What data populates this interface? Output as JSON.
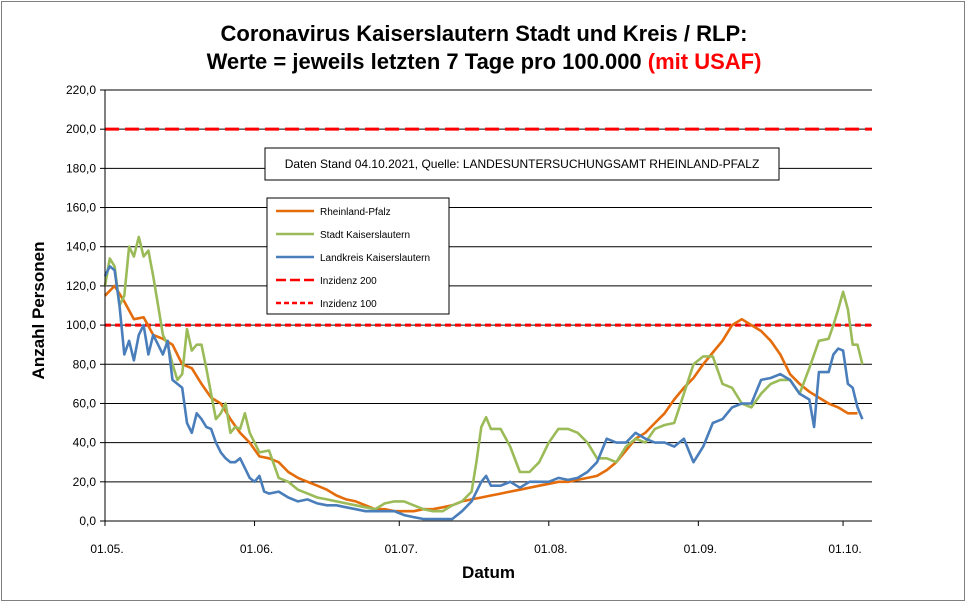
{
  "title_line1": "Coronavirus Kaiserslautern Stadt und Kreis / RLP:",
  "title_line2_main": "Werte = jeweils letzten 7 Tage pro 100.000 ",
  "title_line2_red": "(mit USAF)",
  "chart_data": {
    "type": "line",
    "xlabel": "Datum",
    "ylabel": "Anzahl Personen",
    "ylim": [
      0,
      220
    ],
    "yticks": [
      "0,0",
      "20,0",
      "40,0",
      "60,0",
      "80,0",
      "100,0",
      "120,0",
      "140,0",
      "160,0",
      "180,0",
      "200,0",
      "220,0"
    ],
    "xticks": [
      {
        "label": "01.05.",
        "day": 0
      },
      {
        "label": "01.06.",
        "day": 31
      },
      {
        "label": "01.07.",
        "day": 61
      },
      {
        "label": "01.08.",
        "day": 92
      },
      {
        "label": "01.09.",
        "day": 123
      },
      {
        "label": "01.10.",
        "day": 153
      }
    ],
    "x_last_day": 156,
    "grid": true,
    "annotation": "Daten Stand 04.10.2021, Quelle: LANDESUNTERSUCHUNGSAMT RHEINLAND-PFALZ",
    "legend_position": "upper-left",
    "reference_lines": [
      {
        "name": "Inzidenz 200",
        "value": 200,
        "color": "#ff0000",
        "dash": "long"
      },
      {
        "name": "Inzidenz 100",
        "value": 100,
        "color": "#ff0000",
        "dash": "short"
      }
    ],
    "series": [
      {
        "name": "Rheinland-Pfalz",
        "color": "#e46c0a",
        "points": [
          [
            0,
            115
          ],
          [
            2,
            120
          ],
          [
            4,
            112
          ],
          [
            6,
            103
          ],
          [
            8,
            104
          ],
          [
            10,
            95
          ],
          [
            12,
            93
          ],
          [
            14,
            90
          ],
          [
            16,
            80
          ],
          [
            18,
            78
          ],
          [
            20,
            70
          ],
          [
            22,
            63
          ],
          [
            24,
            60
          ],
          [
            26,
            52
          ],
          [
            28,
            45
          ],
          [
            30,
            40
          ],
          [
            32,
            33
          ],
          [
            34,
            32
          ],
          [
            36,
            30
          ],
          [
            38,
            25
          ],
          [
            40,
            22
          ],
          [
            42,
            20
          ],
          [
            44,
            18
          ],
          [
            46,
            16
          ],
          [
            48,
            13
          ],
          [
            50,
            11
          ],
          [
            52,
            10
          ],
          [
            54,
            8
          ],
          [
            56,
            6
          ],
          [
            58,
            6
          ],
          [
            60,
            5
          ],
          [
            62,
            5
          ],
          [
            64,
            5
          ],
          [
            66,
            6
          ],
          [
            68,
            6
          ],
          [
            70,
            7
          ],
          [
            72,
            8
          ],
          [
            74,
            10
          ],
          [
            76,
            11
          ],
          [
            78,
            12
          ],
          [
            80,
            13
          ],
          [
            82,
            14
          ],
          [
            84,
            15
          ],
          [
            86,
            16
          ],
          [
            88,
            17
          ],
          [
            90,
            18
          ],
          [
            92,
            19
          ],
          [
            94,
            20
          ],
          [
            96,
            20
          ],
          [
            98,
            21
          ],
          [
            100,
            22
          ],
          [
            102,
            23
          ],
          [
            104,
            26
          ],
          [
            106,
            30
          ],
          [
            108,
            36
          ],
          [
            110,
            42
          ],
          [
            112,
            45
          ],
          [
            114,
            50
          ],
          [
            116,
            55
          ],
          [
            118,
            62
          ],
          [
            120,
            68
          ],
          [
            122,
            73
          ],
          [
            124,
            80
          ],
          [
            126,
            86
          ],
          [
            128,
            92
          ],
          [
            130,
            100
          ],
          [
            132,
            103
          ],
          [
            134,
            100
          ],
          [
            136,
            97
          ],
          [
            138,
            92
          ],
          [
            140,
            85
          ],
          [
            142,
            75
          ],
          [
            144,
            70
          ],
          [
            146,
            66
          ],
          [
            148,
            63
          ],
          [
            150,
            60
          ],
          [
            152,
            58
          ],
          [
            154,
            55
          ],
          [
            156,
            55
          ]
        ]
      },
      {
        "name": "Stadt Kaiserslautern",
        "color": "#9bbb59",
        "points": [
          [
            0,
            120
          ],
          [
            1,
            134
          ],
          [
            2,
            130
          ],
          [
            3,
            110
          ],
          [
            4,
            115
          ],
          [
            5,
            140
          ],
          [
            6,
            135
          ],
          [
            7,
            145
          ],
          [
            8,
            135
          ],
          [
            9,
            138
          ],
          [
            10,
            125
          ],
          [
            11,
            110
          ],
          [
            12,
            95
          ],
          [
            13,
            90
          ],
          [
            14,
            80
          ],
          [
            15,
            72
          ],
          [
            16,
            75
          ],
          [
            17,
            98
          ],
          [
            18,
            87
          ],
          [
            19,
            90
          ],
          [
            20,
            90
          ],
          [
            21,
            78
          ],
          [
            22,
            65
          ],
          [
            23,
            52
          ],
          [
            24,
            55
          ],
          [
            25,
            60
          ],
          [
            26,
            45
          ],
          [
            27,
            48
          ],
          [
            28,
            47
          ],
          [
            29,
            55
          ],
          [
            30,
            45
          ],
          [
            32,
            35
          ],
          [
            34,
            36
          ],
          [
            36,
            22
          ],
          [
            38,
            20
          ],
          [
            40,
            16
          ],
          [
            42,
            14
          ],
          [
            44,
            12
          ],
          [
            46,
            11
          ],
          [
            48,
            10
          ],
          [
            50,
            9
          ],
          [
            52,
            8
          ],
          [
            54,
            7
          ],
          [
            56,
            6
          ],
          [
            58,
            9
          ],
          [
            60,
            10
          ],
          [
            62,
            10
          ],
          [
            64,
            8
          ],
          [
            66,
            6
          ],
          [
            68,
            5
          ],
          [
            70,
            5
          ],
          [
            72,
            8
          ],
          [
            74,
            10
          ],
          [
            76,
            15
          ],
          [
            77,
            30
          ],
          [
            78,
            48
          ],
          [
            79,
            53
          ],
          [
            80,
            47
          ],
          [
            82,
            47
          ],
          [
            84,
            38
          ],
          [
            86,
            25
          ],
          [
            88,
            25
          ],
          [
            90,
            30
          ],
          [
            92,
            40
          ],
          [
            94,
            47
          ],
          [
            96,
            47
          ],
          [
            98,
            45
          ],
          [
            100,
            40
          ],
          [
            102,
            32
          ],
          [
            104,
            32
          ],
          [
            106,
            30
          ],
          [
            108,
            38
          ],
          [
            110,
            42
          ],
          [
            112,
            40
          ],
          [
            114,
            47
          ],
          [
            116,
            49
          ],
          [
            118,
            50
          ],
          [
            120,
            65
          ],
          [
            122,
            80
          ],
          [
            124,
            84
          ],
          [
            126,
            84
          ],
          [
            128,
            70
          ],
          [
            130,
            68
          ],
          [
            132,
            60
          ],
          [
            134,
            58
          ],
          [
            136,
            65
          ],
          [
            138,
            70
          ],
          [
            140,
            72
          ],
          [
            142,
            72
          ],
          [
            144,
            65
          ],
          [
            146,
            78
          ],
          [
            148,
            92
          ],
          [
            150,
            93
          ],
          [
            151,
            100
          ],
          [
            152,
            108
          ],
          [
            153,
            117
          ],
          [
            154,
            108
          ],
          [
            155,
            90
          ],
          [
            156,
            90
          ],
          [
            157,
            80
          ]
        ]
      },
      {
        "name": "Landkreis Kaiserslautern",
        "color": "#4a7ebb",
        "points": [
          [
            0,
            125
          ],
          [
            1,
            130
          ],
          [
            2,
            128
          ],
          [
            3,
            110
          ],
          [
            4,
            85
          ],
          [
            5,
            92
          ],
          [
            6,
            82
          ],
          [
            7,
            95
          ],
          [
            8,
            100
          ],
          [
            9,
            85
          ],
          [
            10,
            95
          ],
          [
            11,
            90
          ],
          [
            12,
            85
          ],
          [
            13,
            92
          ],
          [
            14,
            72
          ],
          [
            15,
            70
          ],
          [
            16,
            68
          ],
          [
            17,
            50
          ],
          [
            18,
            45
          ],
          [
            19,
            55
          ],
          [
            20,
            52
          ],
          [
            21,
            48
          ],
          [
            22,
            47
          ],
          [
            23,
            40
          ],
          [
            24,
            35
          ],
          [
            25,
            32
          ],
          [
            26,
            30
          ],
          [
            27,
            30
          ],
          [
            28,
            32
          ],
          [
            29,
            27
          ],
          [
            30,
            22
          ],
          [
            31,
            20
          ],
          [
            32,
            23
          ],
          [
            33,
            15
          ],
          [
            34,
            14
          ],
          [
            36,
            15
          ],
          [
            38,
            12
          ],
          [
            40,
            10
          ],
          [
            42,
            11
          ],
          [
            44,
            9
          ],
          [
            46,
            8
          ],
          [
            48,
            8
          ],
          [
            50,
            7
          ],
          [
            52,
            6
          ],
          [
            54,
            5
          ],
          [
            56,
            5
          ],
          [
            58,
            5
          ],
          [
            60,
            5
          ],
          [
            62,
            3
          ],
          [
            64,
            2
          ],
          [
            66,
            1
          ],
          [
            68,
            1
          ],
          [
            70,
            1
          ],
          [
            72,
            1
          ],
          [
            74,
            5
          ],
          [
            76,
            10
          ],
          [
            78,
            20
          ],
          [
            79,
            23
          ],
          [
            80,
            18
          ],
          [
            82,
            18
          ],
          [
            84,
            20
          ],
          [
            86,
            17
          ],
          [
            88,
            20
          ],
          [
            90,
            20
          ],
          [
            92,
            20
          ],
          [
            94,
            22
          ],
          [
            96,
            21
          ],
          [
            98,
            22
          ],
          [
            100,
            25
          ],
          [
            102,
            30
          ],
          [
            104,
            42
          ],
          [
            106,
            40
          ],
          [
            108,
            40
          ],
          [
            110,
            45
          ],
          [
            112,
            42
          ],
          [
            114,
            40
          ],
          [
            116,
            40
          ],
          [
            118,
            38
          ],
          [
            120,
            42
          ],
          [
            122,
            30
          ],
          [
            124,
            38
          ],
          [
            126,
            50
          ],
          [
            128,
            52
          ],
          [
            130,
            58
          ],
          [
            132,
            60
          ],
          [
            134,
            60
          ],
          [
            136,
            72
          ],
          [
            138,
            73
          ],
          [
            140,
            75
          ],
          [
            142,
            72
          ],
          [
            144,
            65
          ],
          [
            146,
            62
          ],
          [
            147,
            48
          ],
          [
            148,
            76
          ],
          [
            150,
            76
          ],
          [
            151,
            85
          ],
          [
            152,
            88
          ],
          [
            153,
            87
          ],
          [
            154,
            70
          ],
          [
            155,
            68
          ],
          [
            156,
            58
          ],
          [
            157,
            52
          ]
        ]
      }
    ]
  }
}
